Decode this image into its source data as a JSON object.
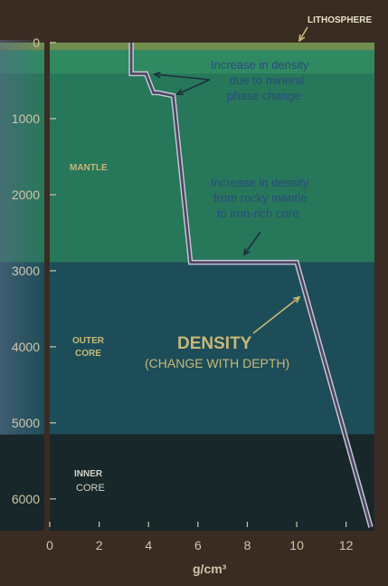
{
  "chart_data": {
    "type": "line",
    "xlabel": "g/cm³",
    "xlim": [
      0,
      13
    ],
    "ylim": [
      0,
      6371
    ],
    "x_ticks": [
      "0",
      "2",
      "4",
      "6",
      "8",
      "10",
      "12"
    ],
    "y_ticks": [
      "0",
      "1000",
      "2000",
      "3000",
      "4000",
      "5000",
      "6000"
    ],
    "series": [
      {
        "name": "DENSITY",
        "x": [
          3.3,
          3.3,
          3.9,
          4.2,
          4.4,
          5.0,
          5.7,
          10.0,
          13.0
        ],
        "y": [
          0,
          410,
          410,
          660,
          660,
          700,
          2890,
          2890,
          6371
        ]
      }
    ],
    "layers": [
      {
        "name": "LITHOSPHERE",
        "top": 0,
        "bottom": 100,
        "color": "#6f8f4e"
      },
      {
        "name": "",
        "top": 100,
        "bottom": 410,
        "color": "#2f8a62"
      },
      {
        "name": "MANTLE",
        "top": 410,
        "bottom": 2890,
        "color": "#27775a"
      },
      {
        "name": "OUTER CORE",
        "top": 2890,
        "bottom": 5150,
        "color": "#1d4d58"
      },
      {
        "name": "INNER CORE",
        "top": 5150,
        "bottom": 6371,
        "color": "#17272a"
      }
    ],
    "annotations": {
      "phase_change": "Increase in density due to mineral phase change",
      "core_boundary": "Increase in density from rocky mantle to iron-rich core",
      "density_title": "DENSITY",
      "density_subtitle": "(CHANGE WITH DEPTH)"
    },
    "colors": {
      "background": "#3a2c22",
      "line": "#4a4660",
      "line_outline": "#c8c6d6",
      "axis_text": "#cfc6a8",
      "layer_label": "#c8b779",
      "annotation_text": "#243f72",
      "density_text": "#c8b779",
      "arrow_light": "#c8b779",
      "arrow_dark": "#1e2e40"
    }
  },
  "labels": {
    "lithosphere": "LITHOSPHERE",
    "mantle": "MANTLE",
    "outer_core_1": "OUTER",
    "outer_core_2": "CORE",
    "inner_core_1": "INNER",
    "inner_core_2": "CORE",
    "phase_1": "Increase in density",
    "phase_2": "due to mineral",
    "phase_3": "phase change",
    "core_1": "Increase in density",
    "core_2": "from rocky mantle",
    "core_3": "to iron-rich core",
    "density_title": "DENSITY",
    "density_subtitle": "(CHANGE WITH DEPTH)",
    "xlabel": "g/cm³"
  }
}
